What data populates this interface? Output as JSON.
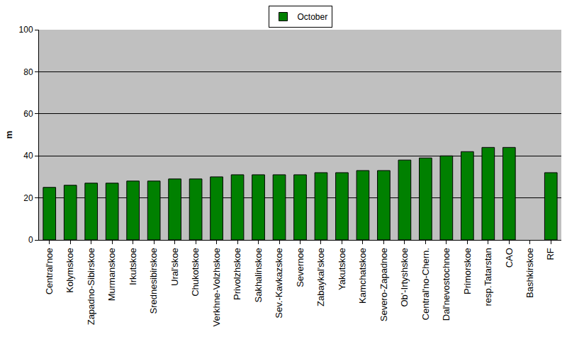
{
  "chart_data": {
    "type": "bar",
    "y_label": "m",
    "categories": [
      "Central'noe",
      "Kolymskoe",
      "Zapadno-Sibirskoe",
      "Murmanskoe",
      "Irkutskoe",
      "Srednesibirskoe",
      "Ural'skoe",
      "Chukotskoe",
      "Verkhne-Volzhskoe",
      "Privolzhskoe",
      "Sakhalinskoe",
      "Sev.-Kavkazskoe",
      "Severnoe",
      "Zabaykal'skoe",
      "Yakutskoe",
      "Kamchatskoe",
      "Severo-Zapadnoe",
      "Ob'-Irtyshskoe",
      "Central'no-Chern.",
      "Dal'nevostochnoe",
      "Primorskoe",
      "resp.Tatarstan",
      "CAO",
      "Bashkirskoe",
      "RF"
    ],
    "series": [
      {
        "name": "October",
        "color": "#008000",
        "values": [
          25,
          26,
          27,
          27,
          28,
          28,
          29,
          29,
          30,
          31,
          31,
          31,
          31,
          32,
          32,
          33,
          33,
          38,
          39,
          40,
          42,
          44,
          44,
          null,
          32
        ]
      }
    ],
    "ylim": [
      0,
      100
    ],
    "yticks": [
      0,
      20,
      40,
      60,
      80,
      100
    ],
    "grid": true,
    "legend": "top"
  }
}
